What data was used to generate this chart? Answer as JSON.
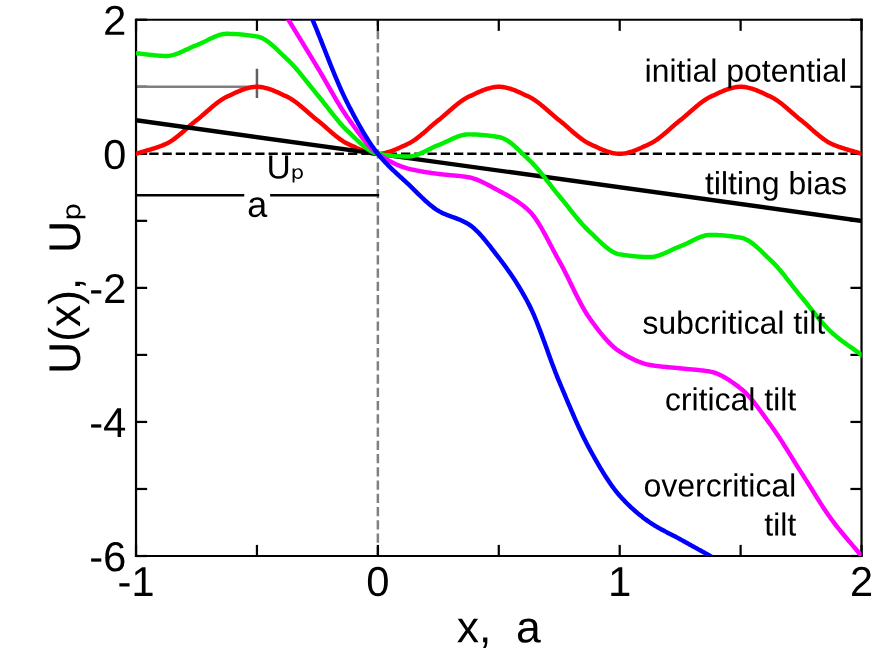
{
  "chart_data": {
    "type": "line",
    "xlabel": "x,  a",
    "ylabel": "U(x),  Uₚ",
    "xlim": [
      -1,
      2
    ],
    "ylim": [
      -6,
      2
    ],
    "xticks": [
      -1,
      {
        "value": -0.5,
        "label": null
      },
      0,
      {
        "value": 0.5,
        "label": null
      },
      1,
      {
        "value": 1.5,
        "label": null
      },
      2
    ],
    "yticks": [
      -6,
      {
        "value": -5,
        "label": null
      },
      -4,
      {
        "value": -3,
        "label": null
      },
      -2,
      {
        "value": -1,
        "label": null
      },
      0,
      {
        "value": 1,
        "label": null
      },
      2
    ],
    "grid": false,
    "legend": false,
    "marker": "none",
    "line_style": "solid",
    "series": [
      {
        "color": "#ff0000",
        "x": [
          -1,
          -0.875,
          -0.75,
          -0.625,
          -0.5,
          -0.375,
          -0.25,
          -0.125,
          0,
          0.125,
          0.25,
          0.375,
          0.5,
          0.625,
          0.75,
          0.875,
          1,
          1.125,
          1.25,
          1.375,
          1.5,
          1.625,
          1.75,
          1.875,
          2
        ],
        "values": [
          0,
          0.15,
          0.5,
          0.85,
          1,
          0.85,
          0.5,
          0.15,
          0,
          0.15,
          0.5,
          0.85,
          1,
          0.85,
          0.5,
          0.15,
          0,
          0.15,
          0.5,
          0.85,
          1,
          0.85,
          0.5,
          0.15,
          0
        ]
      },
      {
        "color": "#000000",
        "x": [
          -1,
          2
        ],
        "values": [
          0.5,
          -1
        ]
      },
      {
        "color": "#00ee00",
        "x": [
          -1,
          -0.875,
          -0.75,
          -0.625,
          -0.5,
          -0.375,
          -0.25,
          -0.125,
          0,
          0.125,
          0.25,
          0.375,
          0.5,
          0.625,
          0.75,
          0.875,
          1,
          1.125,
          1.25,
          1.375,
          1.5,
          1.625,
          1.75,
          1.875,
          2
        ],
        "values": [
          1.5,
          1.46,
          1.62,
          1.79,
          1.75,
          1.41,
          0.88,
          0.34,
          0,
          -0.04,
          0.13,
          0.29,
          0.25,
          -0.09,
          -0.63,
          -1.16,
          -1.5,
          -1.54,
          -1.38,
          -1.21,
          -1.25,
          -1.59,
          -2.13,
          -2.66,
          -3
        ]
      },
      {
        "color": "#ff00ff",
        "x": [
          -0.37,
          -0.25,
          -0.125,
          0,
          0.125,
          0.25,
          0.375,
          0.5,
          0.625,
          0.75,
          0.875,
          1,
          1.125,
          1.25,
          1.375,
          1.5,
          1.625,
          1.75,
          1.875,
          2
        ],
        "values": [
          2,
          1.29,
          0.54,
          0,
          -0.22,
          -0.3,
          -0.35,
          -0.55,
          -0.85,
          -1.6,
          -2.45,
          -2.95,
          -3.15,
          -3.2,
          -3.25,
          -3.5,
          -4.05,
          -4.75,
          -5.45,
          -6
        ]
      },
      {
        "color": "#0000ff",
        "x": [
          -0.27,
          -0.125,
          0,
          0.125,
          0.25,
          0.375,
          0.5,
          0.625,
          0.75,
          0.875,
          1,
          1.125,
          1.25,
          1.375
        ],
        "values": [
          2,
          0.75,
          0,
          -0.45,
          -0.85,
          -1.05,
          -1.55,
          -2.25,
          -3.4,
          -4.4,
          -5.1,
          -5.5,
          -5.75,
          -6
        ]
      }
    ],
    "ref_lines": [
      {
        "axis": "y",
        "value": 0,
        "color": "#000000",
        "line_style": "dashed"
      },
      {
        "axis": "x",
        "value": 0,
        "color": "#808080",
        "line_style": "dashed"
      }
    ],
    "annotations": [
      "initial potential",
      "tilting bias",
      "subcritical tilt",
      "critical tilt",
      "overcritical\ntilt",
      "Uₚ",
      "a"
    ]
  }
}
